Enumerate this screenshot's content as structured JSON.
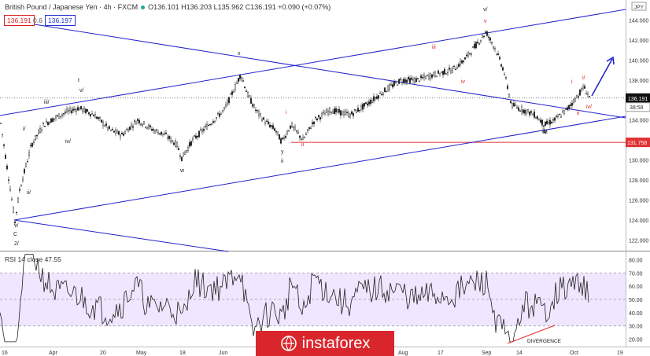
{
  "header": {
    "symbol": "British Pound / Japanese Yen · 4h · FXCM",
    "ohlc": "O136.101 H136.203 L135.962 C136.191 +0.090 (+0.07%)",
    "bid": "136.191",
    "spread": "0.6",
    "ask": "136.197"
  },
  "colors": {
    "up_candle": "#222222",
    "down_candle": "#222222",
    "trendline": "#2222cc",
    "support": "#e03030",
    "rsi": "#222222",
    "rsi_band": "#f0e6ff",
    "wave_black": "#222222",
    "wave_red": "#d82020",
    "arrow": "#1a1acc",
    "watermark": "#d9262c"
  },
  "axis": {
    "currency": "JPY",
    "current_price": "136.191",
    "countdown": "38:58",
    "support_price": "131.758"
  },
  "chart_data": [
    {
      "type": "candlestick",
      "title": "British Pound / Japanese Yen · 4h · FXCM",
      "ylim": [
        121,
        146
      ],
      "yticks": [
        "144.000",
        "142.000",
        "140.000",
        "138.000",
        "136.000",
        "134.000",
        "132.000",
        "130.000",
        "128.000",
        "126.000",
        "124.000",
        "122.000"
      ],
      "xticks": [
        "16",
        "Apr",
        "20",
        "May",
        "18",
        "Jun",
        "Aug",
        "17",
        "Sep",
        "14",
        "Oct",
        "19"
      ],
      "support_level": 131.758,
      "last_price": 136.191,
      "approx_path": [
        [
          0,
          134.2
        ],
        [
          16,
          125.5
        ],
        [
          19,
          123.8
        ],
        [
          25,
          127
        ],
        [
          40,
          131.5
        ],
        [
          55,
          133.5
        ],
        [
          70,
          134.2
        ],
        [
          85,
          134.8
        ],
        [
          100,
          135.2
        ],
        [
          120,
          134.5
        ],
        [
          140,
          133
        ],
        [
          155,
          132.5
        ],
        [
          175,
          134
        ],
        [
          185,
          133.5
        ],
        [
          195,
          133
        ],
        [
          210,
          132.5
        ],
        [
          225,
          131.5
        ],
        [
          231,
          130.2
        ],
        [
          245,
          132
        ],
        [
          265,
          133.5
        ],
        [
          285,
          135
        ],
        [
          300,
          137.5
        ],
        [
          306,
          138.6
        ],
        [
          315,
          136.5
        ],
        [
          325,
          135
        ],
        [
          335,
          134
        ],
        [
          350,
          133
        ],
        [
          358,
          131.8
        ],
        [
          370,
          133.5
        ],
        [
          385,
          132
        ],
        [
          400,
          134
        ],
        [
          420,
          135
        ],
        [
          445,
          134.5
        ],
        [
          465,
          135.5
        ],
        [
          490,
          137
        ],
        [
          510,
          138
        ],
        [
          530,
          138
        ],
        [
          550,
          138.5
        ],
        [
          575,
          139
        ],
        [
          590,
          140
        ],
        [
          605,
          141.5
        ],
        [
          618,
          142.8
        ],
        [
          630,
          141
        ],
        [
          640,
          139
        ],
        [
          650,
          135.5
        ],
        [
          665,
          135
        ],
        [
          680,
          134.5
        ],
        [
          692,
          133.5
        ],
        [
          705,
          134
        ],
        [
          720,
          135
        ],
        [
          730,
          136
        ],
        [
          742,
          137.3
        ],
        [
          750,
          136.2
        ]
      ],
      "wave_labels": [
        "x",
        "t",
        "v/",
        "iii/",
        "iv/",
        "i/",
        "ii/",
        "w",
        "iii",
        "i",
        "ii",
        "y",
        "ii",
        "iii",
        "iv",
        "v",
        "v/",
        "i",
        "i/",
        "ii",
        "iv/",
        "ii/",
        "ii",
        "v/",
        "C",
        "2/"
      ]
    },
    {
      "type": "line",
      "title": "RSI 14 close",
      "last_value": "47.55",
      "ylim": [
        15,
        85
      ],
      "yticks": [
        "80.00",
        "70.00",
        "60.00",
        "50.00",
        "40.00",
        "30.00",
        "20.00"
      ],
      "band": [
        30,
        70
      ],
      "annotation": "DIVERGENCE"
    }
  ],
  "watermark": "instaforex"
}
